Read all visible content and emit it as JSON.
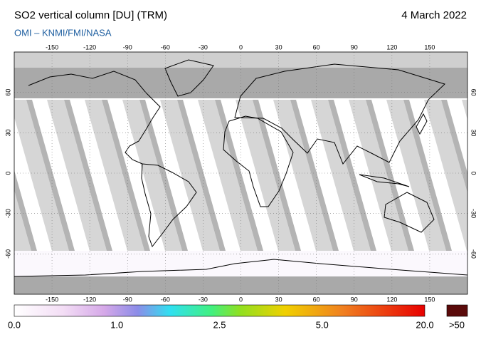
{
  "header": {
    "title": "SO2 vertical column [DU] (TRM)",
    "date": "4 March 2022",
    "source": "OMI  –  KNMI/FMI/NASA"
  },
  "map": {
    "lon_labels": [
      -150,
      -120,
      -90,
      -60,
      -30,
      0,
      30,
      60,
      90,
      120,
      150
    ],
    "lat_labels": [
      60,
      30,
      0,
      -30,
      -60
    ]
  },
  "colorbar": {
    "labels": [
      "0.0",
      "1.0",
      "2.5",
      "5.0",
      "20.0"
    ],
    "overflow_label": ">50"
  }
}
